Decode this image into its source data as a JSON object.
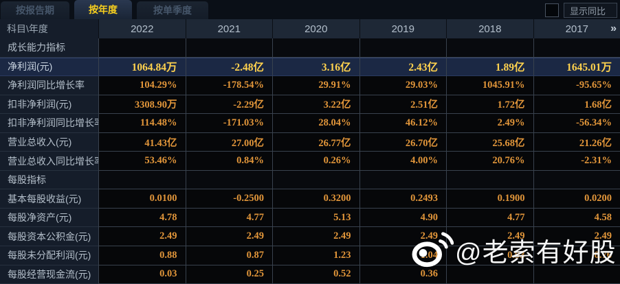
{
  "tabs": [
    {
      "label": "按报告期",
      "active": false
    },
    {
      "label": "按年度",
      "active": true
    },
    {
      "label": "按单季度",
      "active": false
    }
  ],
  "controls": {
    "show_yoy_label": "显示同比",
    "checkbox_checked": false
  },
  "table": {
    "corner_header": "科目\\年度",
    "years": [
      "2022",
      "2021",
      "2020",
      "2019",
      "2018",
      "2017"
    ],
    "more_indicator": "»",
    "rows": [
      {
        "type": "section",
        "label": "成长能力指标",
        "values": [
          "",
          "",
          "",
          "",
          "",
          ""
        ]
      },
      {
        "type": "data",
        "highlight": true,
        "label": "净利润(元)",
        "values": [
          "1064.84万",
          "-2.48亿",
          "3.16亿",
          "2.43亿",
          "1.89亿",
          "1645.01万"
        ]
      },
      {
        "type": "data",
        "highlight": false,
        "label": "净利润同比增长率",
        "values": [
          "104.29%",
          "-178.54%",
          "29.91%",
          "29.03%",
          "1045.91%",
          "-95.65%"
        ]
      },
      {
        "type": "data",
        "highlight": false,
        "label": "扣非净利润(元)",
        "values": [
          "3308.90万",
          "-2.29亿",
          "3.22亿",
          "2.51亿",
          "1.72亿",
          "1.68亿"
        ]
      },
      {
        "type": "data",
        "highlight": false,
        "label": "扣非净利润同比增长率",
        "values": [
          "114.48%",
          "-171.03%",
          "28.04%",
          "46.12%",
          "2.49%",
          "-56.34%"
        ]
      },
      {
        "type": "data",
        "highlight": false,
        "label": "营业总收入(元)",
        "values": [
          "41.43亿",
          "27.00亿",
          "26.77亿",
          "26.70亿",
          "25.68亿",
          "21.26亿"
        ]
      },
      {
        "type": "data",
        "highlight": false,
        "label": "营业总收入同比增长率",
        "values": [
          "53.46%",
          "0.84%",
          "0.26%",
          "4.00%",
          "20.76%",
          "-2.31%"
        ]
      },
      {
        "type": "section",
        "label": "每股指标",
        "values": [
          "",
          "",
          "",
          "",
          "",
          ""
        ]
      },
      {
        "type": "data",
        "highlight": false,
        "label": "基本每股收益(元)",
        "values": [
          "0.0100",
          "-0.2500",
          "0.3200",
          "0.2493",
          "0.1900",
          "0.0200"
        ]
      },
      {
        "type": "data",
        "highlight": false,
        "label": "每股净资产(元)",
        "values": [
          "4.78",
          "4.77",
          "5.13",
          "4.90",
          "4.77",
          "4.58"
        ]
      },
      {
        "type": "data",
        "highlight": false,
        "label": "每股资本公积金(元)",
        "values": [
          "2.49",
          "2.49",
          "2.49",
          "2.49",
          "2.49",
          "2.49"
        ]
      },
      {
        "type": "data",
        "highlight": false,
        "label": "每股未分配利润(元)",
        "values": [
          "0.88",
          "0.87",
          "1.23",
          "1.04",
          "0.93",
          "0.76"
        ]
      },
      {
        "type": "data",
        "highlight": false,
        "label": "每股经营现金流(元)",
        "values": [
          "0.03",
          "0.25",
          "0.52",
          "0.36",
          "",
          ""
        ]
      }
    ]
  },
  "watermark": {
    "icon": "weibo-icon",
    "text": "@老索有好股"
  },
  "colors": {
    "accent_tab_active": "#f7cf1e",
    "value_gold": "#e2963a",
    "highlight_value": "#ffd24e",
    "highlight_row_bg": "#1b2844",
    "label_cell_bg": "#151d2a",
    "value_cell_bg": "#060709"
  }
}
